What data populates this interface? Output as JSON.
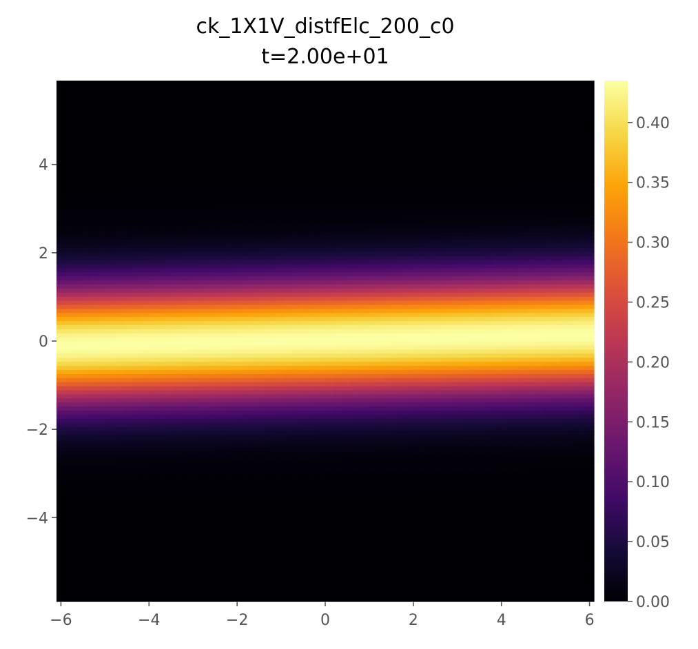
{
  "chart_data": {
    "type": "heatmap",
    "title": "ck_1X1V_distfElc_200_c0",
    "subtitle": "t=2.00e+01",
    "xlabel": "",
    "ylabel": "",
    "colormap": "inferno",
    "xlim": [
      -6.1,
      6.1
    ],
    "ylim": [
      -5.9,
      5.9
    ],
    "x_ticks": [
      -6,
      -4,
      -2,
      0,
      2,
      4,
      6
    ],
    "x_tick_labels": [
      "−6",
      "−4",
      "−2",
      "0",
      "2",
      "4",
      "6"
    ],
    "y_ticks": [
      -4,
      -2,
      0,
      2,
      4
    ],
    "y_tick_labels": [
      "−4",
      "−2",
      "0",
      "2",
      "4"
    ],
    "colorbar": {
      "range": [
        0.0,
        0.435
      ],
      "ticks": [
        0.0,
        0.05,
        0.1,
        0.15,
        0.2,
        0.25,
        0.3,
        0.35,
        0.4
      ],
      "tick_labels": [
        "0.00",
        "0.05",
        "0.10",
        "0.15",
        "0.20",
        "0.25",
        "0.30",
        "0.35",
        "0.40"
      ]
    },
    "distribution": {
      "peak_value": 0.435,
      "center_v_at_x_min": -0.1,
      "center_v_at_x_max": 0.15,
      "width_sigma": 0.92
    },
    "grid": false
  }
}
